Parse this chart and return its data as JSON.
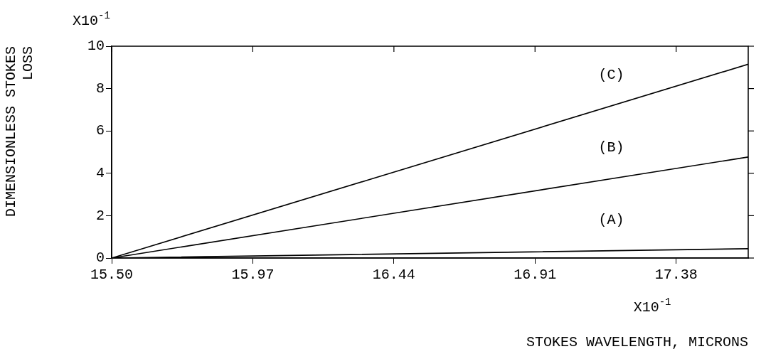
{
  "chart_data": {
    "type": "line",
    "xlabel": "STOKES WAVELENGTH, MICRONS",
    "ylabel": "DIMENSIONLESS STOKES LOSS",
    "x": [
      15.5,
      17.62
    ],
    "series": [
      {
        "name": "(A)",
        "color": "#000000",
        "values": [
          0,
          0.44
        ]
      },
      {
        "name": "(B)",
        "color": "#000000",
        "values": [
          0,
          4.77
        ]
      },
      {
        "name": "(C)",
        "color": "#000000",
        "values": [
          0,
          9.15
        ]
      }
    ],
    "xlim": [
      15.5,
      17.62
    ],
    "xticks": [
      {
        "value": 15.5,
        "label": "15.50"
      },
      15.97,
      16.44,
      16.91,
      17.38
    ],
    "ylim": [
      0,
      10
    ],
    "yticks": [
      0,
      2,
      4,
      6,
      8,
      10
    ],
    "grid": false,
    "legend": false,
    "marker": "none",
    "line_style": "solid",
    "annotations": [
      "X10$^{-1}$",
      "X10$^{-1}$"
    ]
  }
}
